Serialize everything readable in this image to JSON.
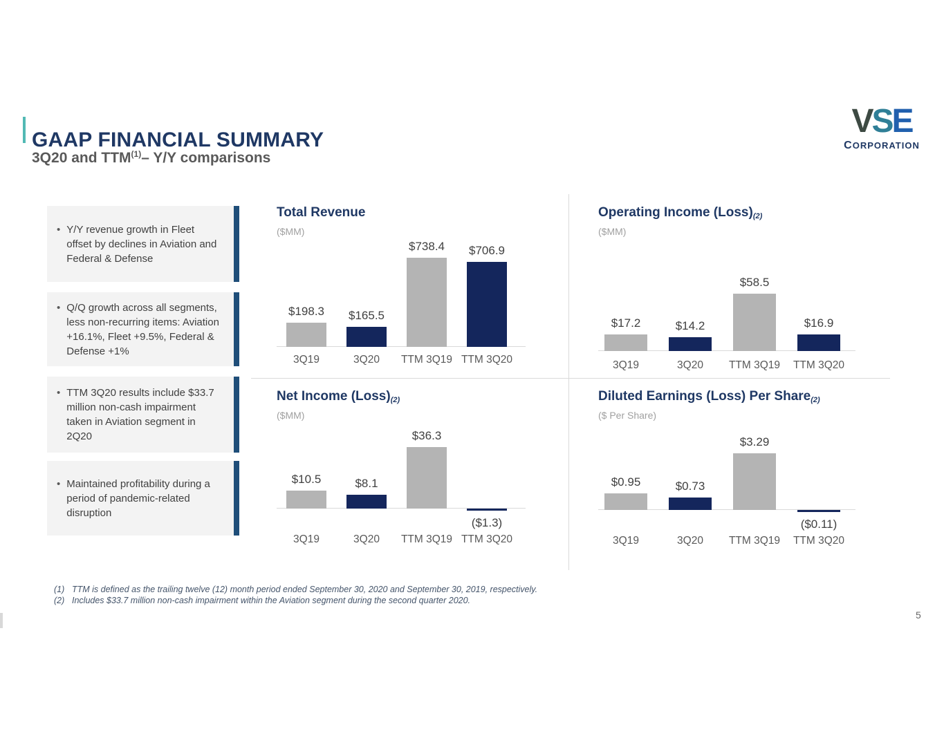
{
  "slide": {
    "title": "GAAP FINANCIAL SUMMARY",
    "subtitle": {
      "prefix": "3Q20 and TTM",
      "sup": "(1)",
      "suffix": "– Y/Y comparisons"
    },
    "page_number": "5"
  },
  "logo": {
    "letters": [
      "V",
      "S",
      "E"
    ],
    "subtext": "CORPORATION"
  },
  "bullets": [
    "Y/Y revenue growth in Fleet offset by declines in Aviation and Federal & Defense",
    "Q/Q growth across all segments, less non-recurring items:  Aviation +16.1%, Fleet +9.5%, Federal & Defense +1%",
    "TTM 3Q20 results include $33.7 million non-cash impairment taken in Aviation segment in 2Q20",
    "Maintained profitability during a period of pandemic-related disruption"
  ],
  "footnotes": [
    {
      "num": "(1)",
      "text": "TTM is defined as the trailing twelve (12) month period ended September 30, 2020 and September 30, 2019, respectively."
    },
    {
      "num": "(2)",
      "text": "Includes $33.7 million non-cash impairment within the Aviation segment during the second quarter 2020."
    }
  ],
  "colors": {
    "bar_gray": "#b4b4b4",
    "bar_navy": "#14265c",
    "title_navy": "#1f3864",
    "accent_teal": "#52b9b4",
    "side_bar_blue": "#1f4e79"
  },
  "chart_data": [
    {
      "type": "bar",
      "title": "Total Revenue",
      "title_note": "",
      "units": "($MM)",
      "categories": [
        "3Q19",
        "3Q20",
        "TTM 3Q19",
        "TTM 3Q20"
      ],
      "values": [
        198.3,
        165.5,
        738.4,
        706.9
      ],
      "value_labels": [
        "$198.3",
        "$165.5",
        "$738.4",
        "$706.9"
      ],
      "bar_colors": [
        "gray",
        "navy",
        "gray",
        "navy"
      ],
      "ylim": [
        0,
        800
      ],
      "legend": "none",
      "grid": false
    },
    {
      "type": "bar",
      "title": "Operating Income (Loss)",
      "title_note": "(2)",
      "units": "($MM)",
      "categories": [
        "3Q19",
        "3Q20",
        "TTM 3Q19",
        "TTM 3Q20"
      ],
      "values": [
        17.2,
        14.2,
        58.5,
        16.9
      ],
      "value_labels": [
        "$17.2",
        "$14.2",
        "$58.5",
        "$16.9"
      ],
      "bar_colors": [
        "gray",
        "navy",
        "gray",
        "navy"
      ],
      "ylim": [
        0,
        65
      ],
      "legend": "none",
      "grid": false
    },
    {
      "type": "bar",
      "title": "Net Income (Loss)",
      "title_note": "(2)",
      "units": "($MM)",
      "categories": [
        "3Q19",
        "3Q20",
        "TTM 3Q19",
        "TTM 3Q20"
      ],
      "values": [
        10.5,
        8.1,
        36.3,
        -1.3
      ],
      "value_labels": [
        "$10.5",
        "$8.1",
        "$36.3",
        "($1.3)"
      ],
      "bar_colors": [
        "gray",
        "navy",
        "gray",
        "navy"
      ],
      "ylim": [
        -5,
        40
      ],
      "legend": "none",
      "grid": false
    },
    {
      "type": "bar",
      "title": "Diluted Earnings (Loss) Per Share",
      "title_note": "(2)",
      "units": "($ Per Share)",
      "categories": [
        "3Q19",
        "3Q20",
        "TTM 3Q19",
        "TTM 3Q20"
      ],
      "values": [
        0.95,
        0.73,
        3.29,
        -0.11
      ],
      "value_labels": [
        "$0.95",
        "$0.73",
        "$3.29",
        "($0.11)"
      ],
      "bar_colors": [
        "gray",
        "navy",
        "gray",
        "navy"
      ],
      "ylim": [
        -0.5,
        3.5
      ],
      "legend": "none",
      "grid": false
    }
  ]
}
